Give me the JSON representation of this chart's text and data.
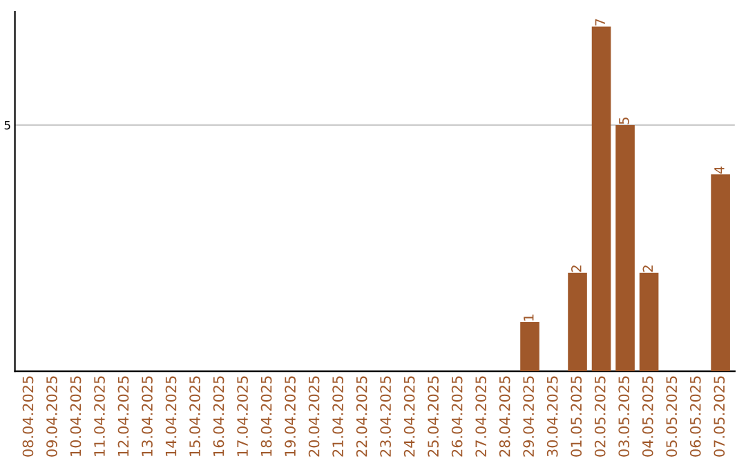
{
  "chart_data": {
    "type": "bar",
    "categories": [
      "08.04.2025",
      "09.04.2025",
      "10.04.2025",
      "11.04.2025",
      "12.04.2025",
      "13.04.2025",
      "14.04.2025",
      "15.04.2025",
      "16.04.2025",
      "17.04.2025",
      "18.04.2025",
      "19.04.2025",
      "20.04.2025",
      "21.04.2025",
      "22.04.2025",
      "23.04.2025",
      "24.04.2025",
      "25.04.2025",
      "26.04.2025",
      "27.04.2025",
      "28.04.2025",
      "29.04.2025",
      "30.04.2025",
      "01.05.2025",
      "02.05.2025",
      "03.05.2025",
      "04.05.2025",
      "05.05.2025",
      "06.05.2025",
      "07.05.2025"
    ],
    "values": [
      null,
      null,
      null,
      null,
      null,
      null,
      null,
      null,
      null,
      null,
      null,
      null,
      null,
      null,
      null,
      null,
      null,
      null,
      null,
      null,
      null,
      1,
      null,
      2,
      7,
      5,
      2,
      null,
      null,
      4
    ],
    "data_labels": true,
    "color": "#a0582a",
    "ylim": [
      0,
      7.3
    ],
    "yticks": [
      5
    ],
    "grid": "y"
  }
}
